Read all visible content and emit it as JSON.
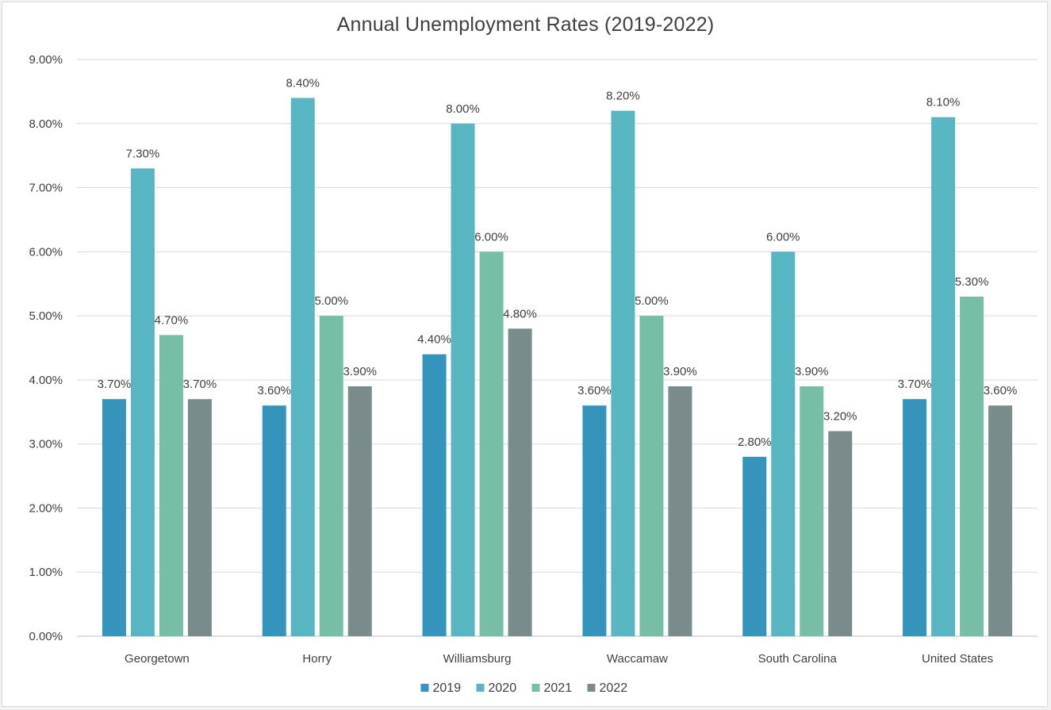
{
  "chart_data": {
    "type": "bar",
    "title": "Annual Unemployment Rates (2019-2022)",
    "xlabel": "",
    "ylabel": "",
    "ylim": [
      0,
      9
    ],
    "y_ticks": [
      "0.00%",
      "1.00%",
      "2.00%",
      "3.00%",
      "4.00%",
      "5.00%",
      "6.00%",
      "7.00%",
      "8.00%",
      "9.00%"
    ],
    "grid": true,
    "legend_position": "bottom",
    "categories": [
      "Georgetown",
      "Horry",
      "Williamsburg",
      "Waccamaw",
      "South Carolina",
      "United States"
    ],
    "series": [
      {
        "name": "2019",
        "color": "#3494bc",
        "values": [
          3.7,
          3.6,
          4.4,
          3.6,
          2.8,
          3.7
        ],
        "labels": [
          "3.70%",
          "3.60%",
          "4.40%",
          "3.60%",
          "2.80%",
          "3.70%"
        ]
      },
      {
        "name": "2020",
        "color": "#58b5c2",
        "values": [
          7.3,
          8.4,
          8.0,
          8.2,
          6.0,
          8.1
        ],
        "labels": [
          "7.30%",
          "8.40%",
          "8.00%",
          "8.20%",
          "6.00%",
          "8.10%"
        ]
      },
      {
        "name": "2021",
        "color": "#76bea6",
        "values": [
          4.7,
          5.0,
          6.0,
          5.0,
          3.9,
          5.3
        ],
        "labels": [
          "4.70%",
          "5.00%",
          "6.00%",
          "5.00%",
          "3.90%",
          "5.30%"
        ]
      },
      {
        "name": "2022",
        "color": "#7a8b8c",
        "values": [
          3.7,
          3.9,
          4.8,
          3.9,
          3.2,
          3.6
        ],
        "labels": [
          "3.70%",
          "3.90%",
          "4.80%",
          "3.90%",
          "3.20%",
          "3.60%"
        ]
      }
    ]
  }
}
